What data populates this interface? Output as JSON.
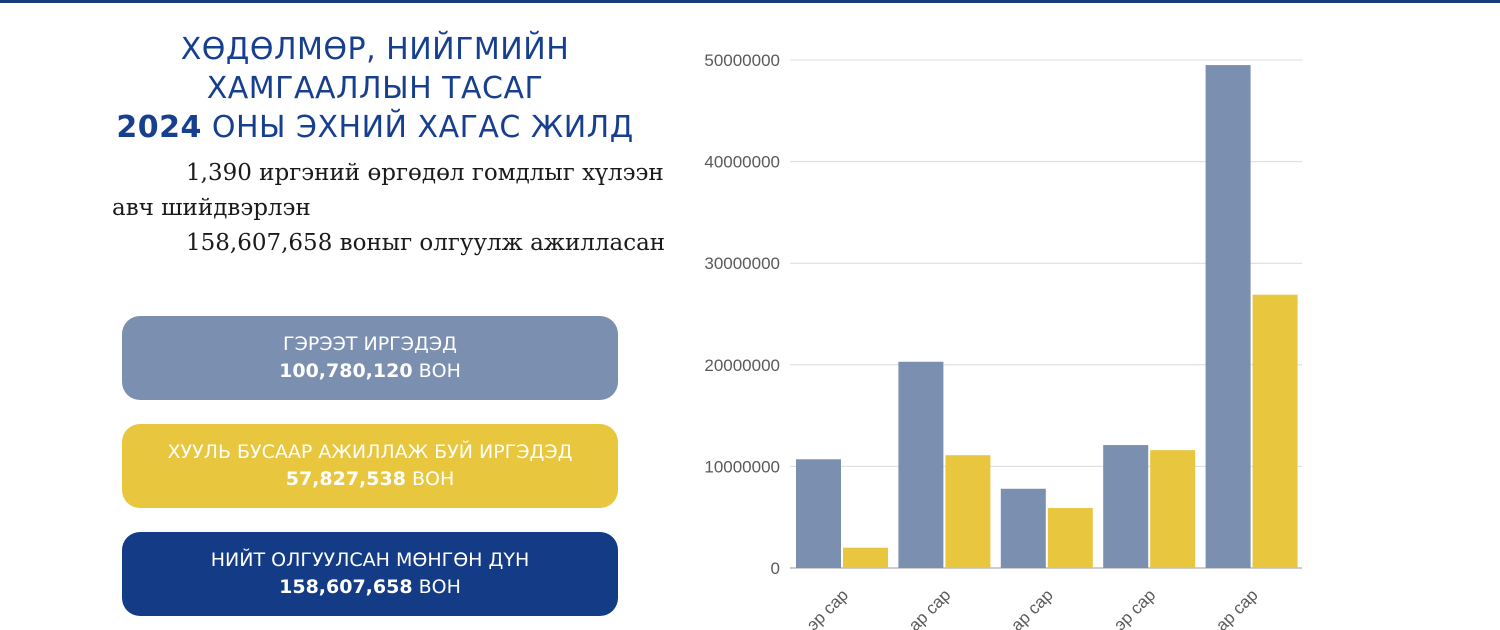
{
  "header": {
    "title_line1": "ХӨДӨЛМӨР, НИЙГМИЙН",
    "title_line2": "ХАМГААЛЛЫН ТАСАГ",
    "title_year": "2024",
    "title_line3_rest": " ОНЫ ЭХНИЙ ХАГАС ЖИЛД"
  },
  "summary": {
    "line1": "1,390 иргэний өргөдөл гомдлыг хүлээн авч шийдвэрлэн",
    "line2": "158,607,658 воныг олгуулж ажилласан"
  },
  "cards": [
    {
      "label": "ГЭРЭЭТ ИРГЭДЭД",
      "amount": "100,780,120",
      "unit": " ВОН"
    },
    {
      "label": "ХУУЛЬ БУСААР АЖИЛЛАЖ БУЙ ИРГЭДЭД",
      "amount": "57,827,538",
      "unit": " ВОН"
    },
    {
      "label": "НИЙТ ОЛГУУЛСАН МӨНГӨН ДҮН",
      "amount": "158,607,658",
      "unit": " ВОН"
    }
  ],
  "colors": {
    "series1": "#7b8fb0",
    "series2": "#e8c63e",
    "navy": "#143b86"
  },
  "chart_data": {
    "type": "bar",
    "categories": [
      "...эр сар",
      "...ар сар",
      "...ар сар",
      "...эр сар",
      "...ар сар"
    ],
    "series": [
      {
        "values": [
          10700000,
          20300000,
          7800000,
          12100000,
          49500000
        ]
      },
      {
        "values": [
          2000000,
          11100000,
          5900000,
          11600000,
          26900000
        ]
      }
    ],
    "y_ticks": [
      "0",
      "10000000",
      "20000000",
      "30000000",
      "40000000",
      "50000000"
    ],
    "ylim": [
      0,
      50000000
    ],
    "grid": true,
    "legend": "none"
  }
}
